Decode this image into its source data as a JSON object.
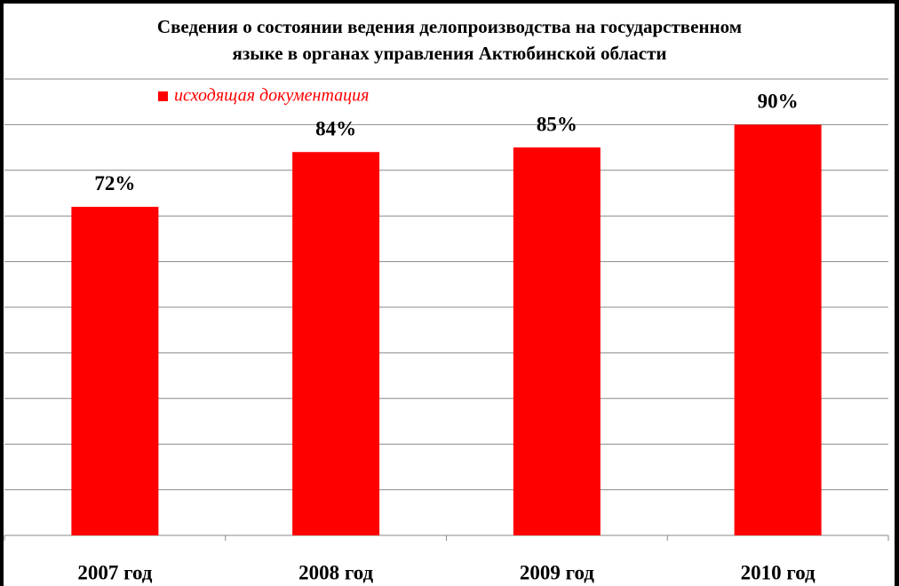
{
  "chart_data": {
    "type": "bar",
    "title": [
      "Сведения о состоянии ведения делопроизводства на государственном",
      "языке в органах управления Актюбинской области"
    ],
    "categories": [
      "2007 год",
      "2008 год",
      "2009 год",
      "2010 год"
    ],
    "series": [
      {
        "name": "исходящая документация",
        "color": "#ff0000",
        "values": [
          72,
          84,
          85,
          90
        ],
        "value_labels": [
          "72%",
          "84%",
          "85%",
          "90%"
        ]
      }
    ],
    "ylim": [
      0,
      100
    ],
    "yticks": [
      0,
      10,
      20,
      30,
      40,
      50,
      60,
      70,
      80,
      90,
      100
    ],
    "grid": true,
    "legend": "top-left"
  }
}
